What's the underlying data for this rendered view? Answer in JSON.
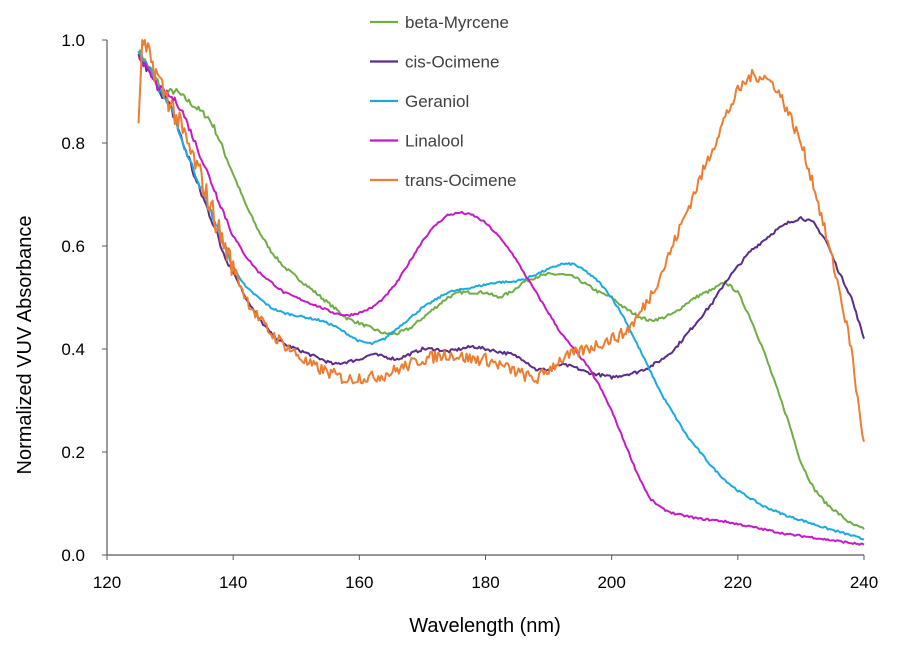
{
  "chart_data": {
    "type": "line",
    "title": "",
    "xlabel": "Wavelength (nm)",
    "ylabel": "Normalized VUV Absorbance",
    "xlim": [
      120,
      240
    ],
    "ylim": [
      0.0,
      1.0
    ],
    "xticks": [
      120,
      140,
      160,
      180,
      200,
      220,
      240
    ],
    "yticks": [
      0.0,
      0.2,
      0.4,
      0.6,
      0.8,
      1.0
    ],
    "xtick_labels": [
      "120",
      "140",
      "160",
      "180",
      "200",
      "220",
      "240"
    ],
    "ytick_labels": [
      "0.0",
      "0.2",
      "0.4",
      "0.6",
      "0.8",
      "1.0"
    ],
    "grid": false,
    "legend_position": "top-center",
    "series": [
      {
        "name": "beta-Myrcene",
        "color": "#70AD47",
        "x": [
          125,
          126,
          127,
          128,
          129,
          130,
          131,
          132,
          133,
          134,
          135,
          136,
          137,
          138,
          140,
          142,
          144,
          146,
          148,
          150,
          152,
          154,
          156,
          158,
          160,
          162,
          164,
          166,
          168,
          170,
          172,
          174,
          176,
          178,
          180,
          182,
          184,
          186,
          188,
          190,
          192,
          194,
          196,
          198,
          200,
          202,
          204,
          206,
          208,
          210,
          212,
          214,
          216,
          218,
          220,
          222,
          224,
          226,
          228,
          230,
          232,
          234,
          236,
          238,
          240
        ],
        "y": [
          0.98,
          0.96,
          0.94,
          0.92,
          0.9,
          0.9,
          0.9,
          0.89,
          0.88,
          0.87,
          0.86,
          0.85,
          0.83,
          0.8,
          0.74,
          0.68,
          0.63,
          0.59,
          0.56,
          0.54,
          0.52,
          0.5,
          0.48,
          0.46,
          0.45,
          0.44,
          0.43,
          0.43,
          0.44,
          0.46,
          0.48,
          0.5,
          0.51,
          0.51,
          0.51,
          0.5,
          0.51,
          0.53,
          0.54,
          0.545,
          0.545,
          0.54,
          0.525,
          0.51,
          0.5,
          0.48,
          0.465,
          0.455,
          0.46,
          0.47,
          0.49,
          0.505,
          0.515,
          0.53,
          0.51,
          0.46,
          0.4,
          0.33,
          0.26,
          0.18,
          0.13,
          0.1,
          0.08,
          0.06,
          0.05
        ]
      },
      {
        "name": "cis-Ocimene",
        "color": "#5B2C8A",
        "x": [
          125,
          126,
          127,
          128,
          129,
          130,
          131,
          132,
          133,
          134,
          135,
          136,
          137,
          138,
          140,
          142,
          144,
          146,
          148,
          150,
          152,
          154,
          156,
          158,
          160,
          162,
          164,
          166,
          168,
          170,
          172,
          174,
          176,
          178,
          180,
          182,
          184,
          186,
          188,
          190,
          192,
          194,
          196,
          198,
          200,
          202,
          204,
          206,
          208,
          210,
          212,
          214,
          216,
          218,
          220,
          222,
          224,
          226,
          228,
          230,
          232,
          234,
          236,
          238,
          240
        ],
        "y": [
          0.97,
          0.95,
          0.93,
          0.91,
          0.89,
          0.87,
          0.84,
          0.8,
          0.77,
          0.73,
          0.7,
          0.67,
          0.64,
          0.6,
          0.55,
          0.5,
          0.46,
          0.43,
          0.41,
          0.4,
          0.39,
          0.38,
          0.37,
          0.375,
          0.38,
          0.39,
          0.385,
          0.38,
          0.39,
          0.4,
          0.4,
          0.395,
          0.4,
          0.405,
          0.4,
          0.395,
          0.39,
          0.38,
          0.36,
          0.36,
          0.37,
          0.365,
          0.355,
          0.35,
          0.345,
          0.35,
          0.355,
          0.365,
          0.38,
          0.4,
          0.43,
          0.46,
          0.49,
          0.53,
          0.56,
          0.59,
          0.61,
          0.63,
          0.645,
          0.655,
          0.645,
          0.61,
          0.55,
          0.5,
          0.42
        ]
      },
      {
        "name": "Geraniol",
        "color": "#1BA9E1",
        "x": [
          125,
          126,
          127,
          128,
          129,
          130,
          131,
          132,
          133,
          134,
          135,
          136,
          137,
          138,
          140,
          142,
          144,
          146,
          148,
          150,
          152,
          154,
          156,
          158,
          160,
          162,
          164,
          166,
          168,
          170,
          172,
          174,
          176,
          178,
          180,
          182,
          184,
          186,
          188,
          190,
          192,
          194,
          196,
          198,
          200,
          202,
          204,
          206,
          208,
          210,
          212,
          214,
          216,
          218,
          220,
          222,
          224,
          226,
          228,
          230,
          232,
          234,
          236,
          238,
          240
        ],
        "y": [
          0.98,
          0.96,
          0.94,
          0.91,
          0.89,
          0.87,
          0.84,
          0.8,
          0.77,
          0.74,
          0.71,
          0.68,
          0.65,
          0.62,
          0.56,
          0.52,
          0.5,
          0.48,
          0.47,
          0.465,
          0.46,
          0.455,
          0.445,
          0.43,
          0.415,
          0.41,
          0.42,
          0.44,
          0.46,
          0.48,
          0.495,
          0.51,
          0.515,
          0.52,
          0.525,
          0.53,
          0.53,
          0.535,
          0.545,
          0.555,
          0.565,
          0.565,
          0.55,
          0.53,
          0.5,
          0.46,
          0.41,
          0.36,
          0.31,
          0.27,
          0.23,
          0.2,
          0.17,
          0.145,
          0.125,
          0.11,
          0.095,
          0.085,
          0.075,
          0.068,
          0.06,
          0.052,
          0.045,
          0.038,
          0.03
        ]
      },
      {
        "name": "Linalool",
        "color": "#C51BC5",
        "x": [
          125,
          126,
          127,
          128,
          129,
          130,
          131,
          132,
          133,
          134,
          135,
          136,
          137,
          138,
          140,
          142,
          144,
          146,
          148,
          150,
          152,
          154,
          156,
          158,
          160,
          162,
          164,
          166,
          168,
          170,
          172,
          174,
          176,
          178,
          180,
          182,
          184,
          186,
          188,
          190,
          192,
          194,
          196,
          198,
          200,
          202,
          204,
          206,
          208,
          210,
          212,
          214,
          216,
          218,
          220,
          222,
          224,
          226,
          228,
          230,
          232,
          234,
          236,
          238,
          240
        ],
        "y": [
          0.97,
          0.95,
          0.93,
          0.91,
          0.9,
          0.89,
          0.88,
          0.86,
          0.83,
          0.8,
          0.77,
          0.74,
          0.71,
          0.68,
          0.62,
          0.58,
          0.55,
          0.53,
          0.51,
          0.5,
          0.49,
          0.48,
          0.47,
          0.465,
          0.47,
          0.48,
          0.5,
          0.53,
          0.57,
          0.61,
          0.64,
          0.66,
          0.665,
          0.66,
          0.645,
          0.62,
          0.59,
          0.55,
          0.51,
          0.47,
          0.43,
          0.4,
          0.37,
          0.33,
          0.28,
          0.22,
          0.16,
          0.11,
          0.09,
          0.08,
          0.075,
          0.07,
          0.068,
          0.065,
          0.06,
          0.055,
          0.05,
          0.045,
          0.04,
          0.037,
          0.034,
          0.03,
          0.027,
          0.023,
          0.02
        ]
      },
      {
        "name": "trans-Ocimene",
        "color": "#ED7D31",
        "x": [
          125,
          125.3,
          125.6,
          126,
          127,
          128,
          129,
          130,
          131,
          132,
          133,
          134,
          135,
          136,
          137,
          138,
          140,
          142,
          144,
          146,
          148,
          150,
          152,
          154,
          156,
          158,
          160,
          162,
          164,
          166,
          168,
          170,
          172,
          174,
          176,
          178,
          180,
          182,
          184,
          186,
          188,
          190,
          192,
          194,
          196,
          198,
          200,
          202,
          204,
          206,
          208,
          210,
          212,
          214,
          216,
          218,
          220,
          222,
          224,
          226,
          228,
          230,
          232,
          234,
          236,
          238,
          239,
          240
        ],
        "y": [
          0.84,
          0.93,
          1.0,
          0.98,
          0.96,
          0.93,
          0.9,
          0.88,
          0.85,
          0.82,
          0.79,
          0.76,
          0.73,
          0.69,
          0.66,
          0.62,
          0.56,
          0.5,
          0.46,
          0.43,
          0.41,
          0.39,
          0.37,
          0.36,
          0.35,
          0.34,
          0.345,
          0.345,
          0.35,
          0.36,
          0.37,
          0.38,
          0.385,
          0.39,
          0.385,
          0.38,
          0.38,
          0.37,
          0.36,
          0.35,
          0.34,
          0.36,
          0.38,
          0.39,
          0.4,
          0.41,
          0.42,
          0.43,
          0.46,
          0.5,
          0.55,
          0.61,
          0.67,
          0.73,
          0.79,
          0.85,
          0.9,
          0.93,
          0.93,
          0.91,
          0.86,
          0.8,
          0.72,
          0.62,
          0.52,
          0.4,
          0.3,
          0.22
        ]
      }
    ]
  }
}
